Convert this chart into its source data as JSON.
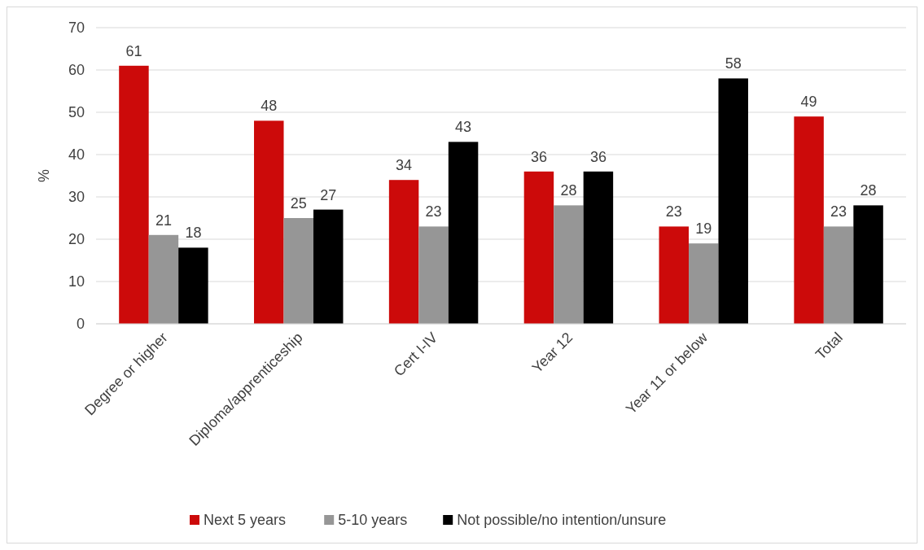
{
  "chart_data": {
    "type": "bar",
    "ylabel": "%",
    "categories": [
      "Degree or higher",
      "Diploma/apprenticeship",
      "Cert I-IV",
      "Year 12",
      "Year 11 or below",
      "Total"
    ],
    "series": [
      {
        "name": "Next 5 years",
        "color": "#cc0a0a",
        "values": [
          61,
          48,
          34,
          36,
          23,
          49
        ]
      },
      {
        "name": "5-10 years",
        "color": "#969696",
        "values": [
          21,
          25,
          23,
          28,
          19,
          23
        ]
      },
      {
        "name": "Not possible/no intention/unsure",
        "color": "#000000",
        "values": [
          18,
          27,
          43,
          36,
          58,
          28
        ]
      }
    ],
    "ylim": [
      0,
      70
    ],
    "yticks": [
      0,
      10,
      20,
      30,
      40,
      50,
      60,
      70
    ],
    "grid": "y",
    "legend": "bottom",
    "data_labels": true
  }
}
